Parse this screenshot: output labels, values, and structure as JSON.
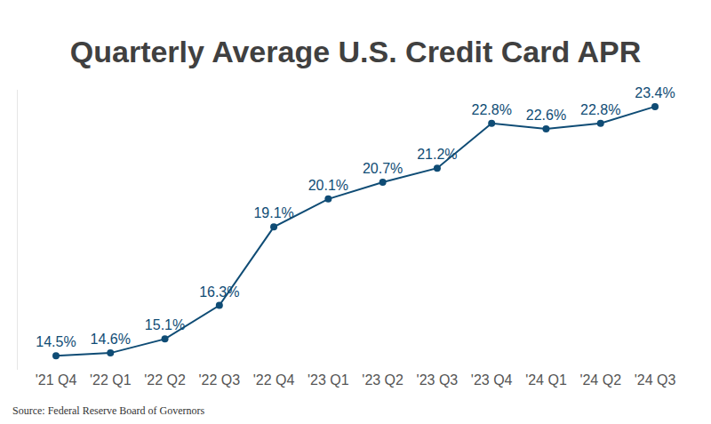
{
  "chart_data": {
    "type": "line",
    "title": "Quarterly Average U.S. Credit Card APR",
    "source": "Source: Federal Reserve Board of Governors",
    "categories": [
      "'21 Q4",
      "'22 Q1",
      "'22 Q2",
      "'22 Q3",
      "'22 Q4",
      "'23 Q1",
      "'23 Q2",
      "'23 Q3",
      "'23 Q4",
      "'24 Q1",
      "'24 Q2",
      "'24 Q3"
    ],
    "values": [
      14.5,
      14.6,
      15.1,
      16.3,
      19.1,
      20.1,
      20.7,
      21.2,
      22.8,
      22.6,
      22.8,
      23.4
    ],
    "value_labels": [
      "14.5%",
      "14.6%",
      "15.1%",
      "16.3%",
      "19.1%",
      "20.1%",
      "20.7%",
      "21.2%",
      "22.8%",
      "22.6%",
      "22.8%",
      "23.4%"
    ],
    "color": "#0f4c75",
    "marker": "circle",
    "line_style": "solid",
    "ylim": [
      14,
      24
    ],
    "grid": false,
    "data_labels": true,
    "tick_labels": "x"
  }
}
